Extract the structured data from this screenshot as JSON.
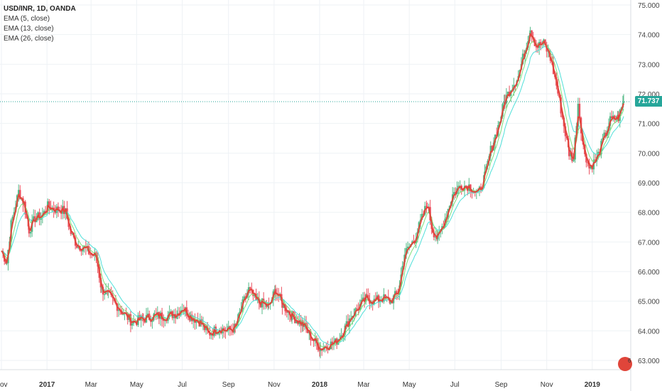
{
  "legend": {
    "title": "USD/INR, 1D, OANDA",
    "lines": [
      "EMA (5, close)",
      "EMA (13, close)",
      "EMA (26, close)"
    ]
  },
  "price_tag": "71.737",
  "badge": {
    "icon": "flag-icon",
    "count": "6"
  },
  "colors": {
    "price": "#e0453a",
    "ema5": "#e0453a",
    "ema13": "#7ee07a",
    "ema26": "#4fe0d9",
    "grid": "#eef2f5",
    "last_price": "#26a69a"
  },
  "chart_data": {
    "type": "line",
    "title": "USD/INR, 1D, OANDA",
    "x_ticks": [
      "ov",
      "2017",
      "Mar",
      "May",
      "Jul",
      "Sep",
      "Nov",
      "2018",
      "Mar",
      "May",
      "Jul",
      "Sep",
      "Nov",
      "2019"
    ],
    "y_ticks": [
      "75.000",
      "74.000",
      "73.000",
      "72.000",
      "71.000",
      "70.000",
      "69.000",
      "68.000",
      "67.000",
      "66.000",
      "65.000",
      "64.000",
      "63.000"
    ],
    "ylim": [
      62.8,
      75.0
    ],
    "last_price": 71.737,
    "series": [
      {
        "name": "USD/INR",
        "anchors": [
          [
            "2016-11-01",
            66.7
          ],
          [
            "2016-11-08",
            66.3
          ],
          [
            "2016-11-14",
            67.6
          ],
          [
            "2016-11-24",
            68.7
          ],
          [
            "2016-12-01",
            68.3
          ],
          [
            "2016-12-08",
            67.4
          ],
          [
            "2016-12-16",
            67.8
          ],
          [
            "2016-12-26",
            67.9
          ],
          [
            "2017-01-02",
            68.2
          ],
          [
            "2017-01-12",
            68.1
          ],
          [
            "2017-01-20",
            68.1
          ],
          [
            "2017-01-26",
            68.0
          ],
          [
            "2017-02-02",
            67.3
          ],
          [
            "2017-02-10",
            66.9
          ],
          [
            "2017-02-20",
            66.8
          ],
          [
            "2017-02-28",
            66.6
          ],
          [
            "2017-03-08",
            66.5
          ],
          [
            "2017-03-15",
            65.4
          ],
          [
            "2017-03-24",
            65.2
          ],
          [
            "2017-04-03",
            64.9
          ],
          [
            "2017-04-13",
            64.6
          ],
          [
            "2017-04-25",
            64.3
          ],
          [
            "2017-05-10",
            64.4
          ],
          [
            "2017-05-25",
            64.5
          ],
          [
            "2017-06-10",
            64.5
          ],
          [
            "2017-06-25",
            64.6
          ],
          [
            "2017-07-01",
            64.8
          ],
          [
            "2017-07-12",
            64.5
          ],
          [
            "2017-07-25",
            64.3
          ],
          [
            "2017-08-05",
            63.9
          ],
          [
            "2017-08-20",
            64.1
          ],
          [
            "2017-08-30",
            64.0
          ],
          [
            "2017-09-10",
            64.1
          ],
          [
            "2017-09-20",
            64.9
          ],
          [
            "2017-09-28",
            65.4
          ],
          [
            "2017-10-08",
            65.0
          ],
          [
            "2017-10-18",
            64.9
          ],
          [
            "2017-10-25",
            64.8
          ],
          [
            "2017-11-03",
            65.4
          ],
          [
            "2017-11-12",
            64.9
          ],
          [
            "2017-11-25",
            64.5
          ],
          [
            "2017-12-10",
            64.2
          ],
          [
            "2017-12-20",
            63.8
          ],
          [
            "2018-01-02",
            63.4
          ],
          [
            "2018-01-10",
            63.5
          ],
          [
            "2018-01-22",
            63.6
          ],
          [
            "2018-02-02",
            64.0
          ],
          [
            "2018-02-12",
            64.5
          ],
          [
            "2018-02-22",
            64.8
          ],
          [
            "2018-03-05",
            65.1
          ],
          [
            "2018-03-15",
            65.0
          ],
          [
            "2018-03-26",
            65.1
          ],
          [
            "2018-04-06",
            65.0
          ],
          [
            "2018-04-16",
            65.3
          ],
          [
            "2018-04-25",
            66.6
          ],
          [
            "2018-05-08",
            67.1
          ],
          [
            "2018-05-18",
            67.8
          ],
          [
            "2018-05-25",
            68.3
          ],
          [
            "2018-06-01",
            67.4
          ],
          [
            "2018-06-08",
            67.1
          ],
          [
            "2018-06-18",
            67.8
          ],
          [
            "2018-06-28",
            68.6
          ],
          [
            "2018-07-08",
            68.9
          ],
          [
            "2018-07-20",
            68.9
          ],
          [
            "2018-08-01",
            68.6
          ],
          [
            "2018-08-10",
            69.2
          ],
          [
            "2018-08-18",
            70.1
          ],
          [
            "2018-08-28",
            70.9
          ],
          [
            "2018-09-06",
            71.8
          ],
          [
            "2018-09-14",
            72.2
          ],
          [
            "2018-09-24",
            72.6
          ],
          [
            "2018-10-03",
            73.5
          ],
          [
            "2018-10-10",
            74.2
          ],
          [
            "2018-10-18",
            73.6
          ],
          [
            "2018-10-28",
            73.7
          ],
          [
            "2018-11-06",
            73.2
          ],
          [
            "2018-11-14",
            72.3
          ],
          [
            "2018-11-22",
            71.2
          ],
          [
            "2018-12-01",
            70.0
          ],
          [
            "2018-12-07",
            69.8
          ],
          [
            "2018-12-13",
            71.7
          ],
          [
            "2018-12-20",
            70.2
          ],
          [
            "2018-12-28",
            69.5
          ],
          [
            "2019-01-07",
            69.8
          ],
          [
            "2019-01-15",
            70.4
          ],
          [
            "2019-01-25",
            71.1
          ],
          [
            "2019-02-05",
            71.2
          ],
          [
            "2019-02-12",
            71.74
          ]
        ]
      },
      {
        "name": "EMA (5, close)",
        "period": 5
      },
      {
        "name": "EMA (13, close)",
        "period": 13
      },
      {
        "name": "EMA (26, close)",
        "period": 26
      }
    ]
  }
}
